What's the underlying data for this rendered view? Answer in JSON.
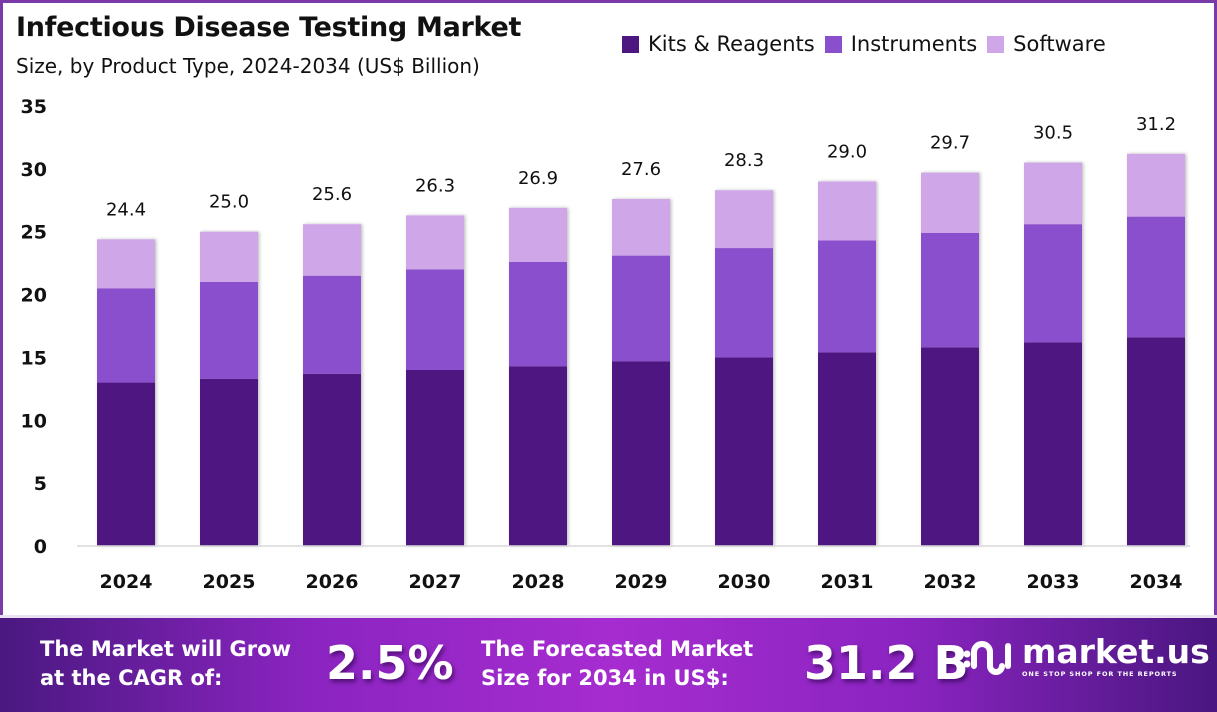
{
  "header": {
    "title": "Infectious Disease Testing Market",
    "subtitle": "Size, by Product Type, 2024-2034 (US$ Billion)"
  },
  "colors": {
    "kits": "#4e1681",
    "instruments": "#8a4fcc",
    "software": "#cfa6e8",
    "frame": "#7a3aa8"
  },
  "chart_data": {
    "type": "bar",
    "stacked": true,
    "title": "Infectious Disease Testing Market",
    "subtitle": "Size, by Product Type, 2024-2034 (US$ Billion)",
    "xlabel": "",
    "ylabel": "",
    "ylim": [
      0,
      35
    ],
    "yticks": [
      0,
      5,
      10,
      15,
      20,
      25,
      30,
      35
    ],
    "grid": false,
    "legend": "top-right",
    "categories": [
      "2024",
      "2025",
      "2026",
      "2027",
      "2028",
      "2029",
      "2030",
      "2031",
      "2032",
      "2033",
      "2034"
    ],
    "series": [
      {
        "name": "Kits & Reagents",
        "values": [
          13.0,
          13.3,
          13.7,
          14.0,
          14.3,
          14.7,
          15.0,
          15.4,
          15.8,
          16.2,
          16.6
        ]
      },
      {
        "name": "Instruments",
        "values": [
          7.5,
          7.7,
          7.8,
          8.0,
          8.3,
          8.4,
          8.7,
          8.9,
          9.1,
          9.4,
          9.6
        ]
      },
      {
        "name": "Software",
        "values": [
          3.9,
          4.0,
          4.1,
          4.3,
          4.3,
          4.5,
          4.6,
          4.7,
          4.8,
          4.9,
          5.0
        ]
      }
    ],
    "totals": [
      "24.4",
      "25.0",
      "25.6",
      "26.3",
      "26.9",
      "27.6",
      "28.3",
      "29.0",
      "29.7",
      "30.5",
      "31.2"
    ]
  },
  "footer": {
    "cagr_label_line1": "The Market will Grow",
    "cagr_label_line2": "at the CAGR of:",
    "cagr_value": "2.5%",
    "forecast_label_line1": "The Forecasted Market",
    "forecast_label_line2": "Size for 2034 in US$:",
    "forecast_value": "31.2 B",
    "brand_name": "market.us",
    "brand_tagline": "ONE STOP SHOP FOR THE REPORTS"
  }
}
